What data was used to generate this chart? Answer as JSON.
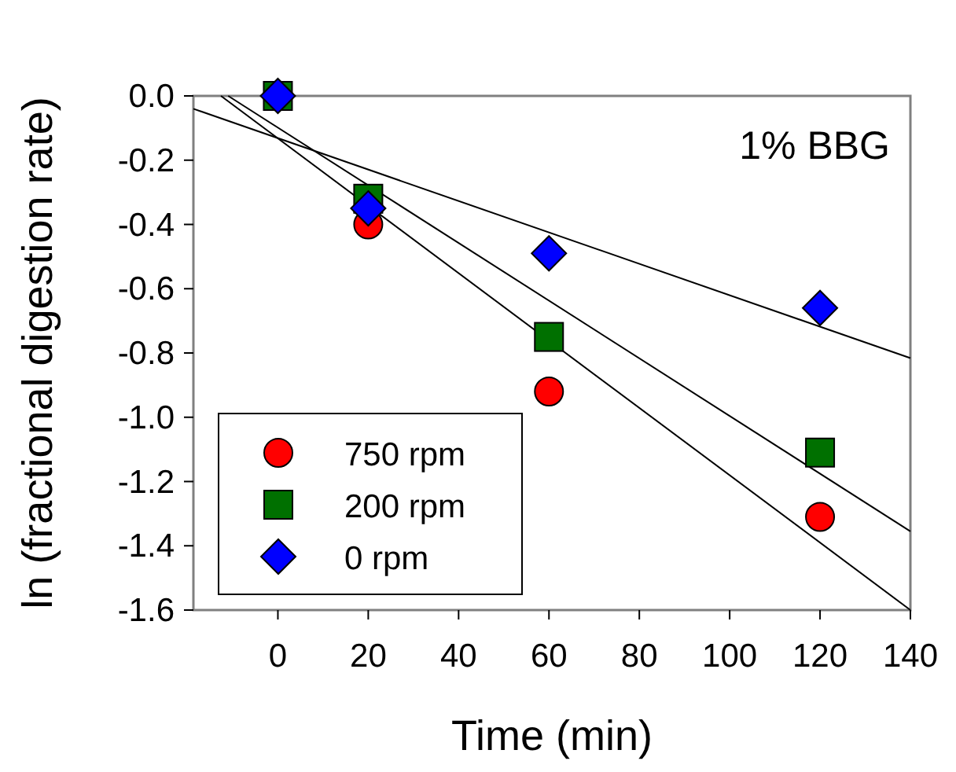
{
  "chart_data": {
    "type": "scatter",
    "xlabel": "Time (min)",
    "ylabel": "ln (fractional digestion rate)",
    "annotations": [
      "1% BBG"
    ],
    "x": [
      0,
      20,
      60,
      120
    ],
    "xlim": [
      -18.7,
      140
    ],
    "xticks": [
      0,
      20,
      40,
      60,
      80,
      100,
      120,
      140
    ],
    "ylim": [
      -1.6,
      0
    ],
    "yticks": [
      {
        "value": 0,
        "label": "0.0"
      },
      {
        "value": -0.2,
        "label": "-0.2"
      },
      {
        "value": -0.4,
        "label": "-0.4"
      },
      {
        "value": -0.6,
        "label": "-0.6"
      },
      {
        "value": -0.8,
        "label": "-0.8"
      },
      {
        "value": -1,
        "label": "-1.0"
      },
      {
        "value": -1.2,
        "label": "-1.2"
      },
      {
        "value": -1.4,
        "label": "-1.4"
      },
      {
        "value": -1.6,
        "label": "-1.6"
      }
    ],
    "grid": false,
    "legend": "bottom left",
    "series": [
      {
        "name": "750 rpm",
        "color": "#ff0000",
        "marker": "circle",
        "values": [
          null,
          -0.4,
          -0.92,
          -1.31
        ]
      },
      {
        "name": "200 rpm",
        "color": "#007000",
        "marker": "square",
        "values": [
          0,
          -0.32,
          -0.75,
          -1.11
        ]
      },
      {
        "name": "0 rpm",
        "color": "#0000ff",
        "marker": "diamond",
        "values": [
          0,
          -0.35,
          -0.49,
          -0.66
        ]
      },
      {
        "type": "line",
        "color": "#000000",
        "x": [
          -12.6,
          140
        ],
        "values": [
          0,
          -1.6
        ]
      },
      {
        "type": "line",
        "color": "#000000",
        "x": [
          -11,
          140
        ],
        "values": [
          0,
          -1.355
        ]
      },
      {
        "type": "line",
        "color": "#000000",
        "x": [
          -18.7,
          140
        ],
        "values": [
          -0.04,
          -0.816
        ]
      }
    ]
  }
}
